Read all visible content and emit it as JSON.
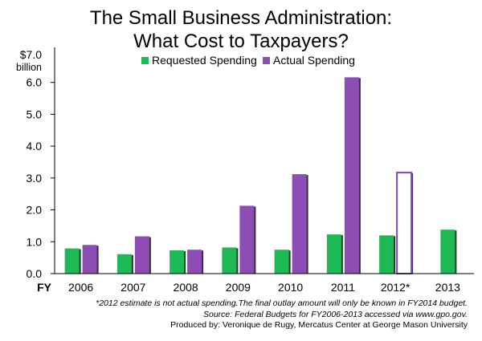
{
  "title_line1": "The Small Business Administration:",
  "title_line2": "What Cost to Taxpayers?",
  "footnotes": {
    "estimate_note": "*2012 estimate is not actual spending.The final outlay amount will only be known in  FY2014 budget.",
    "source": "Source: Federal Budgets for FY2006-2013 accessed via www.gpo.gov.",
    "produced_by": "Produced by: Veronique de Rugy, Mercatus Center at George Mason University"
  },
  "colors": {
    "requested": "#1DB954",
    "actual": "#8E4DB5",
    "estimate_outline": "#7A4BA8"
  },
  "chart_data": {
    "type": "bar",
    "x_axis_prefix": "FY",
    "y_unit_line1": "$7.0",
    "y_unit_line2": "billion",
    "ylim": [
      0,
      7
    ],
    "ytick_labels": [
      "0.0",
      "1.0",
      "2.0",
      "3.0",
      "4.0",
      "5.0",
      "6.0"
    ],
    "categories": [
      "2006",
      "2007",
      "2008",
      "2009",
      "2010",
      "2011",
      "2012*",
      "2013"
    ],
    "legend_position": "top-center",
    "grid": false,
    "series": [
      {
        "name": "Requested Spending",
        "values": [
          0.79,
          0.61,
          0.73,
          0.82,
          0.75,
          1.23,
          1.2,
          1.38
        ]
      },
      {
        "name": "Actual Spending",
        "values": [
          0.9,
          1.17,
          0.75,
          2.13,
          3.12,
          6.16,
          3.17,
          null
        ],
        "estimated_index": 6
      }
    ]
  }
}
